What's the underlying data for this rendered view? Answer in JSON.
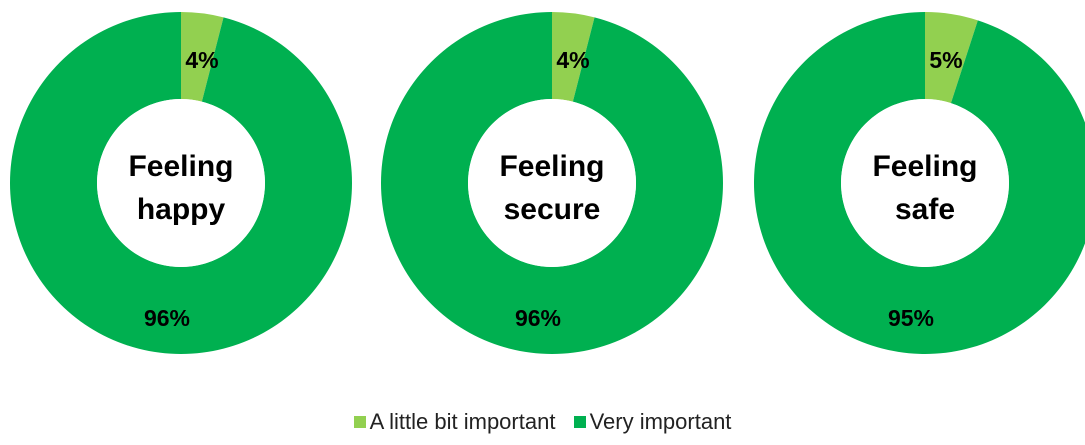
{
  "colors": {
    "little_bit": "#92D050",
    "very": "#00B050",
    "center": "#FFFFFF"
  },
  "legend": [
    {
      "label": "A little bit important",
      "color": "#92D050"
    },
    {
      "label": "Very important",
      "color": "#00B050"
    }
  ],
  "chart_data": [
    {
      "type": "pie",
      "donut": true,
      "center_label": [
        "Feeling",
        "happy"
      ],
      "categories": [
        "A little bit important",
        "Very important"
      ],
      "values": [
        4,
        96
      ],
      "data_labels": [
        "4%",
        "96%"
      ]
    },
    {
      "type": "pie",
      "donut": true,
      "center_label": [
        "Feeling",
        "secure"
      ],
      "categories": [
        "A little bit important",
        "Very important"
      ],
      "values": [
        4,
        96
      ],
      "data_labels": [
        "4%",
        "96%"
      ]
    },
    {
      "type": "pie",
      "donut": true,
      "center_label": [
        "Feeling",
        "safe"
      ],
      "categories": [
        "A little bit important",
        "Very important"
      ],
      "values": [
        5,
        95
      ],
      "data_labels": [
        "5%",
        "95%"
      ]
    }
  ]
}
